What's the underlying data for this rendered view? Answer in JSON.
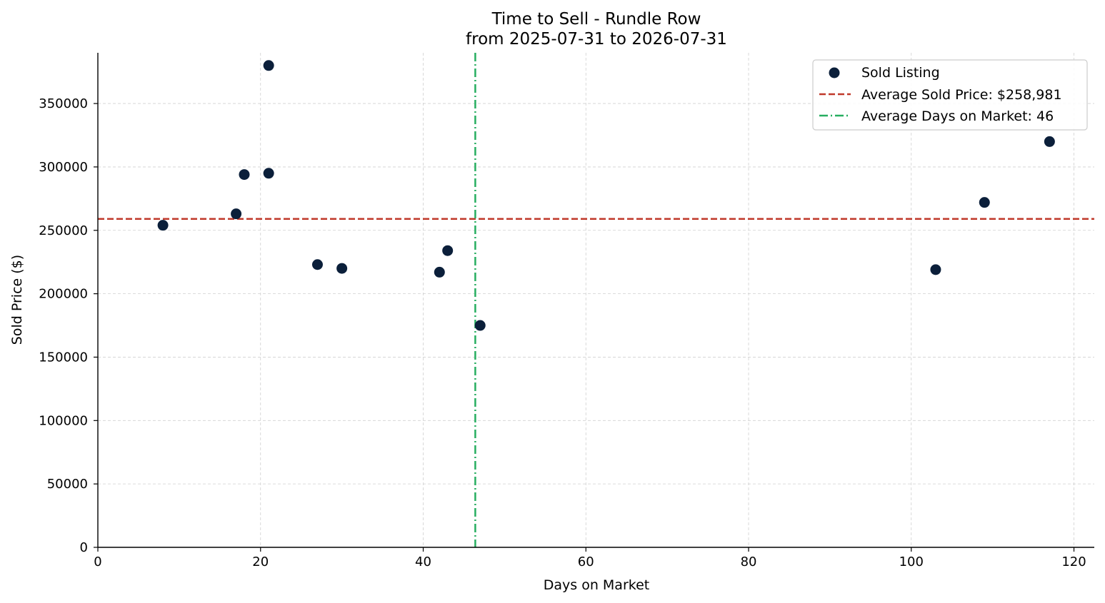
{
  "chart_data": {
    "type": "scatter",
    "title": "Time to Sell - Rundle Row",
    "subtitle": "from 2025-07-31 to 2026-07-31",
    "xlabel": "Days on Market",
    "ylabel": "Sold Price ($)",
    "xlim": [
      0,
      122.5
    ],
    "ylim": [
      0,
      390000
    ],
    "x_ticks": [
      0,
      20,
      40,
      60,
      80,
      100,
      120
    ],
    "y_ticks": [
      0,
      50000,
      100000,
      150000,
      200000,
      250000,
      300000,
      350000
    ],
    "grid": true,
    "legend_position": "top-right",
    "series": [
      {
        "name": "Sold Listing",
        "color": "#0b1f3a",
        "points": [
          {
            "x": 8,
            "y": 254000
          },
          {
            "x": 17,
            "y": 263000
          },
          {
            "x": 18,
            "y": 294000
          },
          {
            "x": 21,
            "y": 295000
          },
          {
            "x": 21,
            "y": 380000
          },
          {
            "x": 27,
            "y": 223000
          },
          {
            "x": 30,
            "y": 220000
          },
          {
            "x": 42,
            "y": 217000
          },
          {
            "x": 43,
            "y": 234000
          },
          {
            "x": 47,
            "y": 175000
          },
          {
            "x": 103,
            "y": 219000
          },
          {
            "x": 109,
            "y": 272000
          },
          {
            "x": 117,
            "y": 320000
          }
        ]
      }
    ],
    "reference_lines": [
      {
        "name": "Average Sold Price: $258,981",
        "orientation": "horizontal",
        "value": 258981,
        "color": "#c0392b",
        "style": "dashed"
      },
      {
        "name": "Average Days on Market: 46",
        "orientation": "vertical",
        "value": 46.4,
        "color": "#27ae60",
        "style": "dashdot"
      }
    ]
  }
}
